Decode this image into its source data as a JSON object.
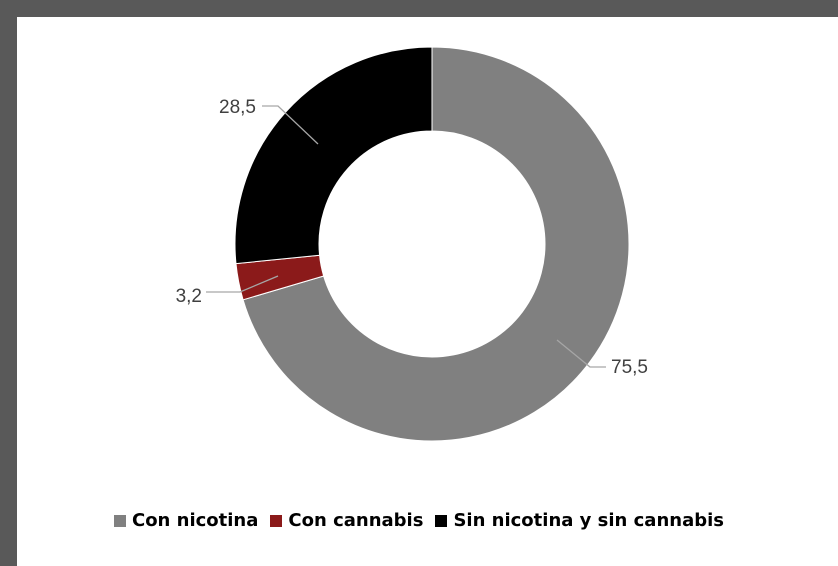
{
  "chart_data": {
    "type": "pie",
    "donut": true,
    "title": "",
    "start_angle_deg": 0,
    "direction": "clockwise",
    "series": [
      {
        "name": "Con nicotina",
        "value": 75.5,
        "label": "75,5",
        "color": "#808080"
      },
      {
        "name": "Con cannabis",
        "value": 3.2,
        "label": "3,2",
        "color": "#8b1a1a"
      },
      {
        "name": "Sin nicotina y sin cannabis",
        "value": 28.5,
        "label": "28,5",
        "color": "#000000"
      }
    ],
    "legend_position": "bottom"
  }
}
